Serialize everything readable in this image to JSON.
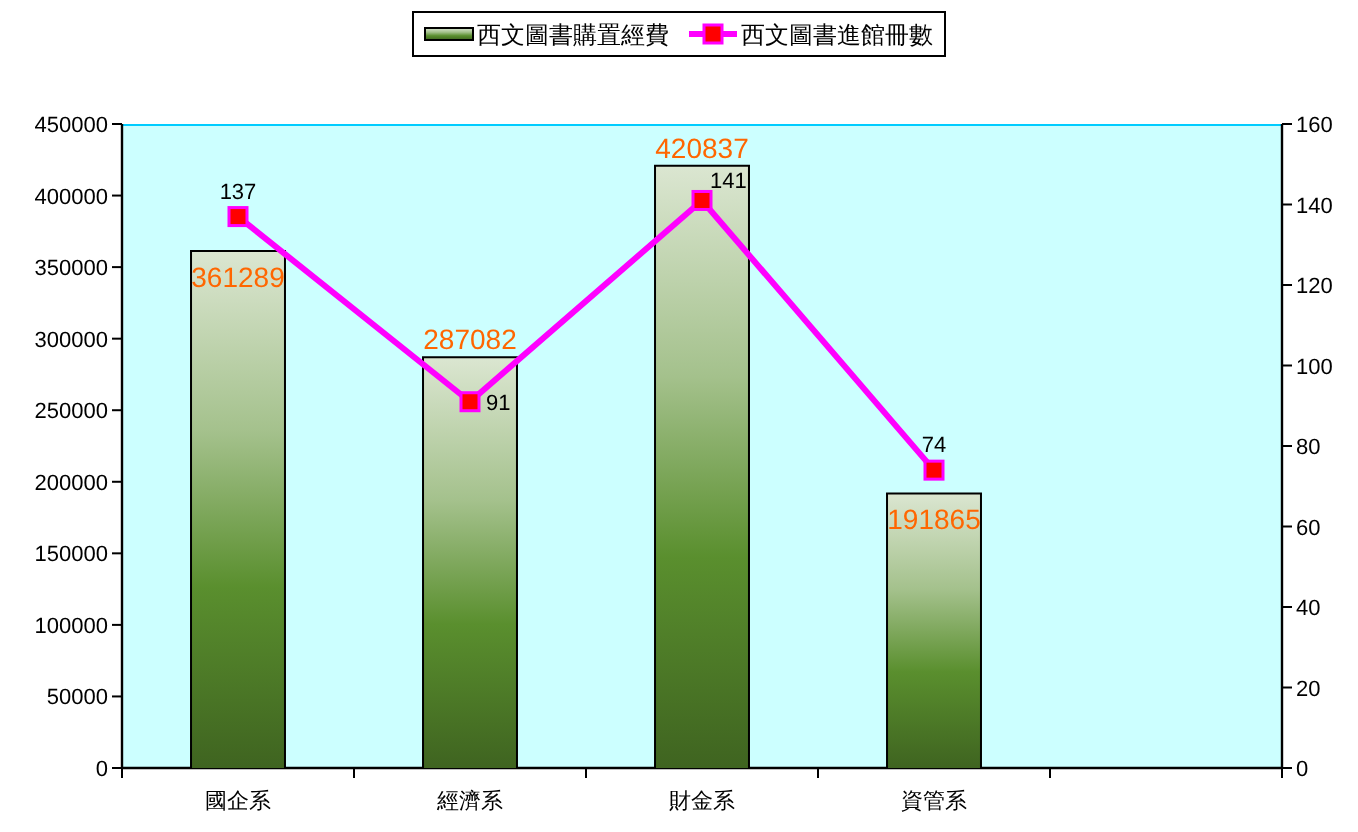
{
  "chart_data": {
    "type": "bar",
    "categories": [
      "國企系",
      "經濟系",
      "財金系",
      "資管系",
      null
    ],
    "series": [
      {
        "name": "西文圖書購置經費",
        "color": "#5a8f2e",
        "values": [
          361289,
          287082,
          420837,
          191865,
          null
        ]
      },
      {
        "name": "西文圖書進館冊數",
        "type": "line",
        "axis": "y2",
        "color": "#ff00ff",
        "marker": "square",
        "values": [
          137,
          91,
          141,
          74,
          null
        ]
      }
    ],
    "ylim": [
      0,
      450000
    ],
    "yticks": [
      0,
      50000,
      100000,
      150000,
      200000,
      250000,
      300000,
      350000,
      400000,
      450000
    ],
    "y2lim": [
      0,
      160
    ],
    "y2ticks": [
      0,
      20,
      40,
      60,
      80,
      100,
      120,
      140,
      160
    ],
    "data_labels": true,
    "legend": "top",
    "grid": false
  }
}
